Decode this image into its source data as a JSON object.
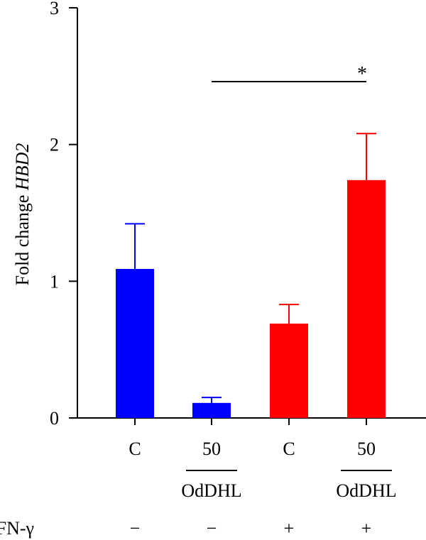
{
  "chart_data": {
    "type": "bar",
    "ylabel_prefix": "Fold change ",
    "ylabel_gene": "HBD2",
    "ylim": [
      0,
      3
    ],
    "yticks": [
      0,
      1,
      2,
      3
    ],
    "categories": [
      "C",
      "50",
      "C",
      "50"
    ],
    "values": [
      1.09,
      0.11,
      0.69,
      1.74
    ],
    "errors": [
      0.33,
      0.04,
      0.14,
      0.34
    ],
    "colors": [
      "#0000ff",
      "#0000ff",
      "#ff0000",
      "#ff0000"
    ],
    "treatment_label": "OdDHL",
    "treatment_groups": [
      1,
      3
    ],
    "ifn_label": "IFN-γ",
    "ifn_values": [
      "−",
      "−",
      "+",
      "+"
    ],
    "significance": {
      "from": 1,
      "to": 3,
      "y": 2.46,
      "label": "*"
    }
  }
}
